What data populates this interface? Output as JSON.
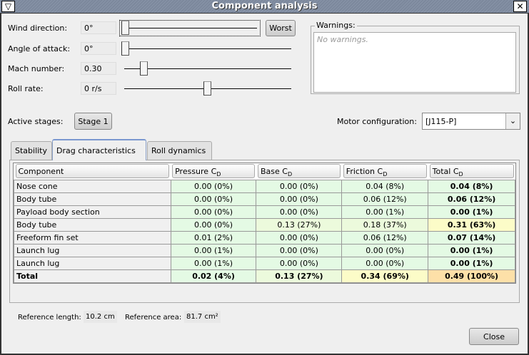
{
  "window": {
    "title": "Component analysis",
    "menu_icon": "triangle-down-icon",
    "close_icon": "x-icon"
  },
  "params": [
    {
      "label": "Wind direction:",
      "value": "0°",
      "slider_fraction": 0.0
    },
    {
      "label": "Angle of attack:",
      "value": "0°",
      "slider_fraction": 0.0
    },
    {
      "label": "Mach number:",
      "value": "0.30",
      "slider_fraction": 0.1
    },
    {
      "label": "Roll rate:",
      "value": "0 r/s",
      "slider_fraction": 0.5
    }
  ],
  "worst_label": "Worst",
  "warnings": {
    "title": "Warnings:",
    "text": "No warnings."
  },
  "stages": {
    "label": "Active stages:",
    "button": "Stage 1"
  },
  "motor": {
    "label": "Motor configuration:",
    "value": "[J115-P]"
  },
  "tabs": [
    "Stability",
    "Drag characteristics",
    "Roll dynamics"
  ],
  "table": {
    "headers": [
      "Component",
      "Pressure C",
      "Base C",
      "Friction C",
      "Total C"
    ],
    "subscript": "D",
    "rows": [
      [
        "Nose cone",
        "0.00 (0%)",
        "0.00 (0%)",
        "0.04 (8%)",
        "0.04 (8%)"
      ],
      [
        "Body tube",
        "0.00 (0%)",
        "0.00 (0%)",
        "0.06 (12%)",
        "0.06 (12%)"
      ],
      [
        "Payload body section",
        "0.00 (0%)",
        "0.00 (0%)",
        "0.00 (1%)",
        "0.00 (1%)"
      ],
      [
        "Body tube",
        "0.00 (0%)",
        "0.13 (27%)",
        "0.18 (37%)",
        "0.31 (63%)"
      ],
      [
        "Freeform fin set",
        "0.01 (2%)",
        "0.00 (0%)",
        "0.06 (12%)",
        "0.07 (14%)"
      ],
      [
        "Launch lug",
        "0.00 (1%)",
        "0.00 (0%)",
        "0.00 (0%)",
        "0.00 (1%)"
      ],
      [
        "Launch lug",
        "0.00 (1%)",
        "0.00 (0%)",
        "0.00 (0%)",
        "0.00 (1%)"
      ],
      [
        "Total",
        "0.02 (4%)",
        "0.13 (27%)",
        "0.34 (69%)",
        "0.49 (100%)"
      ]
    ],
    "colors": {
      "low": "#e4fae4",
      "mid": "#ecfadc",
      "high": "#fcfcc8",
      "max": "#fde0a8"
    }
  },
  "reference": {
    "length_label": "Reference length:",
    "length": "10.2 cm",
    "area_label": "Reference area:",
    "area": "81.7 cm²"
  },
  "close_label": "Close"
}
